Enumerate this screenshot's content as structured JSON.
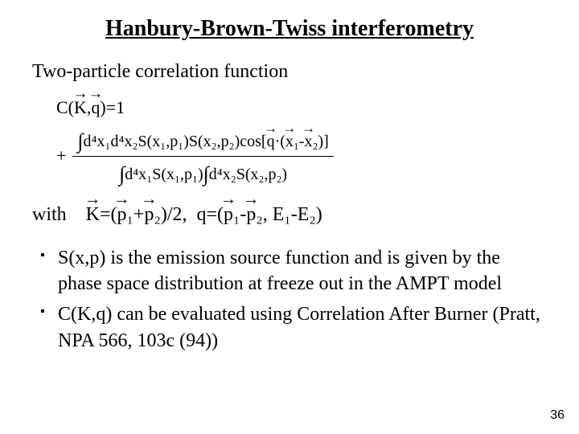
{
  "title": "Hanbury-Brown-Twiss interferometry",
  "subtitle": "Two-particle correlation function",
  "equation": {
    "line1_lhs": "C(",
    "line1_K": "K",
    "line1_mid": ",",
    "line1_q": "q",
    "line1_rhs": ")=1",
    "plus": "+",
    "num_int1": "∫",
    "num_d4x1": "d⁴x₁",
    "num_d4x2": "d⁴x₂",
    "num_Sx1p1": "S(x₁,p₁)",
    "num_Sx2p2": "S(x₂,p₂)",
    "num_cos_open": "cos[",
    "num_q": "q",
    "num_dot": "·(",
    "num_x1": "x",
    "num_minus": "₁-",
    "num_x2": "x",
    "num_cos_close": "₂)]",
    "den_int1": "∫",
    "den_d4x1": "d⁴x₁",
    "den_Sx1p1": "S(x₁,p₁)",
    "den_int2": "∫",
    "den_d4x2": "d⁴x₂",
    "den_Sx2p2": "S(x₂,p₂)"
  },
  "with_label": "with",
  "kdef": {
    "K": "K",
    "eq": "=(",
    "p1": "p",
    "plus": "₁+",
    "p2": "p",
    "half": "₂)/2,  ",
    "qlabel": "q=(",
    "pp1": "p",
    "minus": "₁-",
    "pp2": "p",
    "close": "₂",
    "energies": ", E₁-E₂)"
  },
  "bullets": [
    "S(x,p) is the emission source function and is given by the phase space distribution at freeze out in the AMPT model",
    "C(K,q) can be evaluated using Correlation After Burner (Pratt, NPA 566, 103c (94))"
  ],
  "page_number": "36",
  "style": {
    "title_fontsize": 28,
    "body_fontsize": 24,
    "eq_fontsize": 22,
    "background_color": "#ffffff",
    "text_color": "#000000",
    "font_family": "Times New Roman"
  }
}
